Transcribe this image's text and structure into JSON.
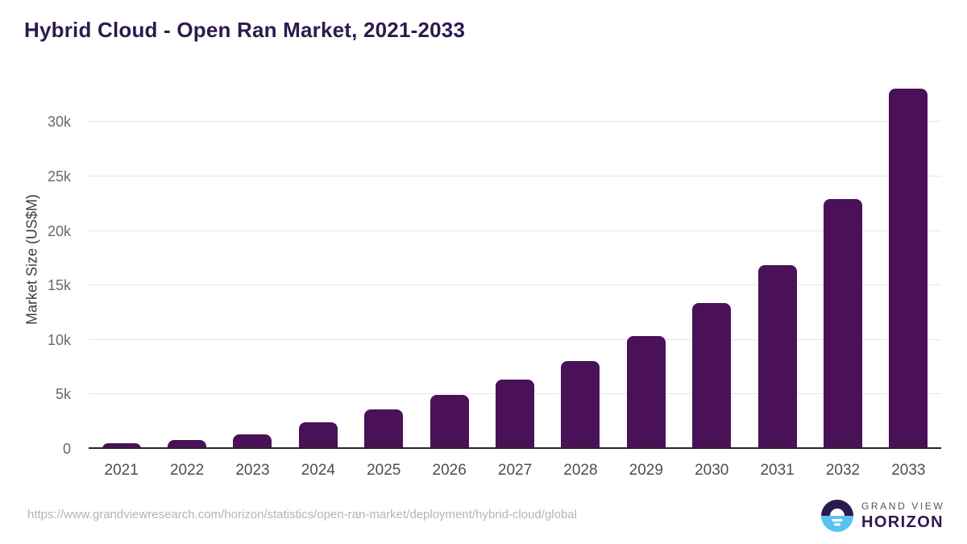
{
  "header": {
    "title": "Hybrid Cloud - Open Ran Market, 2021-2033"
  },
  "chart_data": {
    "type": "bar",
    "title": "Hybrid Cloud - Open Ran Market, 2021-2033",
    "categories": [
      "2021",
      "2022",
      "2023",
      "2024",
      "2025",
      "2026",
      "2027",
      "2028",
      "2029",
      "2030",
      "2031",
      "2032",
      "2033"
    ],
    "values": [
      500,
      830,
      1360,
      2440,
      3620,
      4940,
      6360,
      8080,
      10370,
      13410,
      16860,
      22950,
      33020
    ],
    "xlabel": "",
    "ylabel": "Market Size (US$M)",
    "ylim": [
      0,
      34750
    ],
    "yticks": [
      0,
      5000,
      10000,
      15000,
      20000,
      25000,
      30000
    ],
    "ytick_labels": [
      "0",
      "5k",
      "10k",
      "15k",
      "20k",
      "25k",
      "30k"
    ],
    "grid": true,
    "legend_position": "none",
    "bar_color": "#4a1158"
  },
  "footer": {
    "source_url": "https://www.grandviewresearch.com/horizon/statistics/open-ran-market/deployment/hybrid-cloud/global",
    "logo": {
      "icon": "sun-over-horizon-icon",
      "top": "GRAND VIEW",
      "bottom": "HORIZON"
    }
  },
  "colors": {
    "title_text": "#2e1a4e",
    "bar": "#4a1158",
    "axis_line": "#262626",
    "gridline": "#e6e6e6",
    "y_tick_text": "#696969",
    "x_tick_text": "#4e4e4e",
    "url_text": "#b4b4b4",
    "logo_dark_half": "#2b1a4d",
    "logo_blue_half": "#5bc2f0"
  }
}
